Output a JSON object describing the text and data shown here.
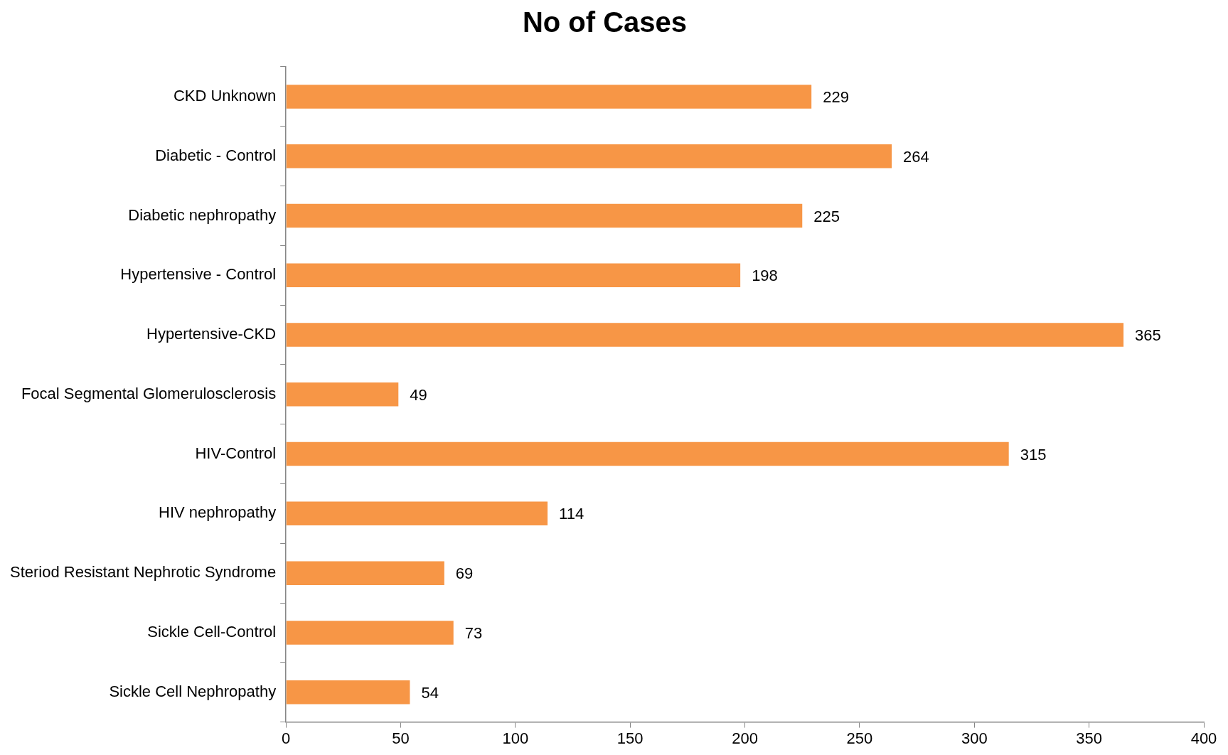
{
  "chart_data": {
    "type": "bar",
    "orientation": "horizontal",
    "title": "No of Cases",
    "categories": [
      "CKD Unknown",
      "Diabetic - Control",
      "Diabetic nephropathy",
      "Hypertensive - Control",
      "Hypertensive-CKD",
      "Focal Segmental Glomerulosclerosis",
      "HIV-Control",
      "HIV nephropathy",
      "Steriod Resistant Nephrotic Syndrome",
      "Sickle Cell-Control",
      "Sickle Cell Nephropathy"
    ],
    "values": [
      229,
      264,
      225,
      198,
      365,
      49,
      315,
      114,
      69,
      73,
      54
    ],
    "color": "#f79646",
    "xlim": [
      0,
      400
    ],
    "xticks": [
      0,
      50,
      100,
      150,
      200,
      250,
      300,
      350,
      400
    ],
    "grid": false,
    "legend": false,
    "data_labels": true
  }
}
